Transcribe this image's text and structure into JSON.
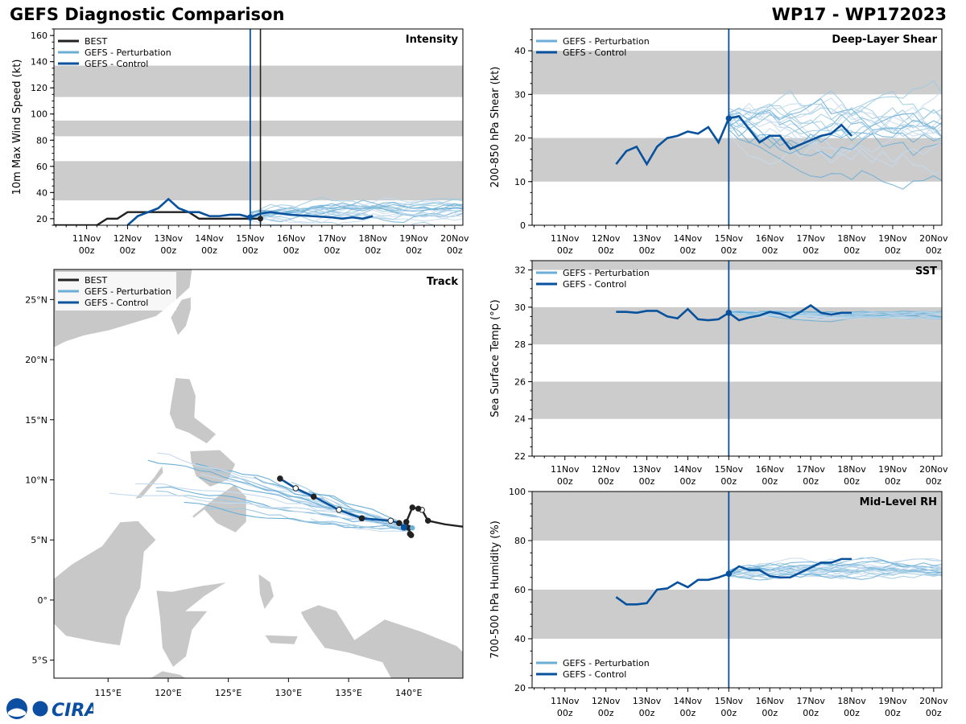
{
  "header": {
    "title_left": "GEFS Diagnostic Comparison",
    "title_right": "WP17 - WP172023"
  },
  "colors": {
    "best": "#222222",
    "control": "#08519c",
    "perturbation": "#6baed6",
    "pert_light": "#c6dbef",
    "band": "#cccccc",
    "land": "#c8c8c8"
  },
  "time_axis": {
    "tick_labels": [
      [
        "11Nov",
        "00z"
      ],
      [
        "12Nov",
        "00z"
      ],
      [
        "13Nov",
        "00z"
      ],
      [
        "14Nov",
        "00z"
      ],
      [
        "15Nov",
        "00z"
      ],
      [
        "16Nov",
        "00z"
      ],
      [
        "17Nov",
        "00z"
      ],
      [
        "18Nov",
        "00z"
      ],
      [
        "19Nov",
        "00z"
      ],
      [
        "20Nov",
        "00z"
      ]
    ],
    "xlim_days": [
      0.2,
      10.2
    ],
    "init_day": 5.0
  },
  "logo_text": "CIRA",
  "chart_data": [
    {
      "id": "intensity",
      "type": "line",
      "title": "Intensity",
      "ylabel": "10m Max Wind Speed (kt)",
      "ylim": [
        15,
        165
      ],
      "yticks": [
        20,
        40,
        60,
        80,
        100,
        120,
        140,
        160
      ],
      "bands": [
        [
          34,
          64
        ],
        [
          83,
          95
        ],
        [
          113,
          137
        ]
      ],
      "legend": [
        "BEST",
        "GEFS - Perturbation",
        "GEFS - Control"
      ],
      "best_x": [
        0.0,
        1.0,
        1.25,
        1.5,
        1.75,
        2.0,
        2.5,
        3.0,
        3.5,
        3.75,
        4.0,
        4.5,
        5.0,
        5.25
      ],
      "best_y": [
        15,
        15,
        15,
        20,
        20,
        25,
        25,
        25,
        25,
        20,
        20,
        20,
        20,
        20
      ],
      "best_end_day": 5.25,
      "control_x": [
        2.0,
        2.25,
        2.5,
        2.75,
        3.0,
        3.25,
        3.5,
        3.75,
        4.0,
        4.25,
        4.5,
        4.75,
        5.0,
        5.25,
        5.5,
        5.75,
        6.0,
        6.5,
        7.0,
        7.25,
        7.5,
        7.75,
        8.0
      ],
      "control_y": [
        15,
        22,
        25,
        28,
        35,
        28,
        25,
        25,
        22,
        22,
        23,
        23,
        21,
        24,
        25,
        24,
        23,
        22,
        21,
        20,
        21,
        20,
        22
      ]
    },
    {
      "id": "shear",
      "type": "line",
      "title": "Deep-Layer Shear",
      "ylabel": "200-850 hPa Shear (kt)",
      "ylim": [
        0,
        45
      ],
      "yticks": [
        0,
        10,
        20,
        30,
        40
      ],
      "bands": [
        [
          10,
          20
        ],
        [
          30,
          40
        ]
      ],
      "legend": [
        "GEFS - Perturbation",
        "GEFS - Control"
      ],
      "control_x": [
        2.25,
        2.5,
        2.75,
        3.0,
        3.25,
        3.5,
        3.75,
        4.0,
        4.25,
        4.5,
        4.75,
        5.0,
        5.25,
        5.5,
        5.75,
        6.0,
        6.25,
        6.5,
        6.75,
        7.0,
        7.25,
        7.5,
        7.75,
        8.0
      ],
      "control_y": [
        14,
        17,
        18,
        14,
        18,
        20,
        20.5,
        21.5,
        21,
        22.5,
        19,
        24.5,
        25,
        22,
        19,
        20.5,
        20.5,
        17.5,
        18.5,
        19.5,
        20.5,
        21,
        23,
        20.5
      ]
    },
    {
      "id": "sst",
      "type": "line",
      "title": "SST",
      "ylabel": "Sea Surface Temp (°C)",
      "ylim": [
        22,
        32.5
      ],
      "yticks": [
        22,
        24,
        26,
        28,
        30,
        32
      ],
      "bands": [
        [
          24,
          26
        ],
        [
          28,
          30
        ],
        [
          32,
          34
        ]
      ],
      "legend": [
        "GEFS - Perturbation",
        "GEFS - Control"
      ],
      "control_x": [
        2.25,
        2.5,
        2.75,
        3.0,
        3.25,
        3.5,
        3.75,
        4.0,
        4.25,
        4.5,
        4.75,
        5.0,
        5.25,
        5.5,
        5.75,
        6.0,
        6.25,
        6.5,
        6.75,
        7.0,
        7.25,
        7.5,
        7.75,
        8.0
      ],
      "control_y": [
        29.75,
        29.75,
        29.7,
        29.8,
        29.8,
        29.5,
        29.4,
        29.9,
        29.35,
        29.3,
        29.35,
        29.7,
        29.3,
        29.45,
        29.55,
        29.75,
        29.65,
        29.45,
        29.75,
        30.1,
        29.7,
        29.6,
        29.7,
        29.7
      ]
    },
    {
      "id": "rh",
      "type": "line",
      "title": "Mid-Level RH",
      "ylabel": "700-500 hPa Humidity (%)",
      "ylim": [
        20,
        100
      ],
      "yticks": [
        20,
        40,
        60,
        80,
        100
      ],
      "bands": [
        [
          40,
          60
        ],
        [
          80,
          100
        ]
      ],
      "legend": [
        "GEFS - Perturbation",
        "GEFS - Control"
      ],
      "control_x": [
        2.25,
        2.5,
        2.75,
        3.0,
        3.25,
        3.5,
        3.75,
        4.0,
        4.25,
        4.5,
        4.75,
        5.0,
        5.25,
        5.5,
        5.75,
        6.0,
        6.25,
        6.5,
        6.75,
        7.0,
        7.25,
        7.5,
        7.75,
        8.0
      ],
      "control_y": [
        57,
        54,
        54,
        54.5,
        60,
        60.5,
        63,
        61,
        64,
        64,
        65,
        66.5,
        69.5,
        68,
        68,
        65.5,
        65,
        65,
        67,
        69,
        71,
        71,
        72.5,
        72.5
      ]
    },
    {
      "id": "track",
      "type": "line",
      "title": "Track",
      "xlim_lon": [
        110.5,
        144.5
      ],
      "ylim_lat": [
        -6.5,
        27.5
      ],
      "lon_ticks": [
        115,
        120,
        125,
        130,
        135,
        140
      ],
      "lon_tick_labels": [
        "115°E",
        "120°E",
        "125°E",
        "130°E",
        "135°E",
        "140°E"
      ],
      "lat_ticks": [
        -5,
        0,
        5,
        10,
        15,
        20,
        25
      ],
      "lat_tick_labels": [
        "5°S",
        "0°",
        "5°N",
        "10°N",
        "15°N",
        "20°N",
        "25°N"
      ],
      "legend": [
        "BEST",
        "GEFS - Perturbation",
        "GEFS - Control"
      ],
      "best_lon": [
        144.5,
        143.0,
        141.6,
        141.1,
        140.8,
        140.3,
        139.8,
        140.0,
        140.1,
        140.2
      ],
      "best_lat": [
        6.1,
        6.3,
        6.6,
        7.5,
        7.6,
        7.7,
        6.5,
        6.0,
        5.5,
        5.4
      ],
      "control_lon": [
        129.3,
        130.6,
        132.1,
        134.2,
        136.1,
        138.5,
        139.2,
        139.6,
        139.8
      ],
      "control_lat": [
        10.1,
        9.3,
        8.6,
        7.5,
        6.8,
        6.6,
        6.4,
        6.1,
        6.0
      ]
    }
  ]
}
